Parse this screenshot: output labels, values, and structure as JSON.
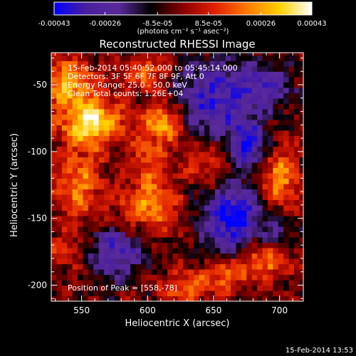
{
  "chart_data": {
    "type": "heatmap",
    "title": "Reconstructed RHESSI Image",
    "xlabel": "Heliocentric X (arcsec)",
    "ylabel": "Heliocentric Y (arcsec)",
    "xlim": [
      527,
      718
    ],
    "ylim": [
      -212,
      -26
    ],
    "x_ticks": [
      550,
      600,
      650,
      700
    ],
    "y_ticks": [
      -50,
      -100,
      -150,
      -200
    ],
    "colorbar": {
      "min": -0.00043,
      "max": 0.00043,
      "tick_values": [
        -0.00043,
        -0.00026,
        -8.5e-05,
        8.5e-05,
        0.00026,
        0.00043
      ],
      "tick_labels": [
        "-0.00043",
        "-0.00026",
        "-8.5e-05",
        "8.5e-05",
        "0.00026",
        "0.00043"
      ],
      "unit_label": "(photons cm⁻² s⁻¹ asec⁻²)",
      "colormap": [
        "#0000ff",
        "#4a1f9e",
        "#5a2a9c",
        "#000000",
        "#8b0000",
        "#e02000",
        "#ff7a00",
        "#ffd000",
        "#ffffff"
      ]
    },
    "annotations": [
      "15-Feb-2014 05:40:52.000 to 05:45:14.000",
      "Detectors: 3F 5F 6F 7F 8F 9F, Att 0",
      "Energy Range: 25.0 - 50.0 keV",
      "Clean     Total counts: 1.26E+04"
    ],
    "peak_label": "Position of Peak = [558,-78]",
    "peak": [
      558,
      -78
    ],
    "sources": [
      {
        "x": 558,
        "y": -78,
        "amp": 1.0,
        "sx": 16,
        "sy": 12
      },
      {
        "x": 540,
        "y": -48,
        "amp": 0.75,
        "sx": 14,
        "sy": 12
      },
      {
        "x": 612,
        "y": -78,
        "amp": 0.78,
        "sx": 11,
        "sy": 12
      },
      {
        "x": 548,
        "y": -125,
        "amp": 0.55,
        "sx": 12,
        "sy": 20
      },
      {
        "x": 600,
        "y": -140,
        "amp": 0.6,
        "sx": 16,
        "sy": 14
      },
      {
        "x": 598,
        "y": -40,
        "amp": 0.5,
        "sx": 12,
        "sy": 10
      },
      {
        "x": 700,
        "y": -120,
        "amp": 0.65,
        "sx": 10,
        "sy": 18
      },
      {
        "x": 688,
        "y": -180,
        "amp": 0.6,
        "sx": 14,
        "sy": 10
      },
      {
        "x": 660,
        "y": -192,
        "amp": 0.55,
        "sx": 10,
        "sy": 8
      },
      {
        "x": 630,
        "y": -200,
        "amp": 0.5,
        "sx": 14,
        "sy": 8
      },
      {
        "x": 640,
        "y": -110,
        "amp": 0.35,
        "sx": 10,
        "sy": 10
      },
      {
        "x": 655,
        "y": -100,
        "amp": 0.35,
        "sx": 8,
        "sy": 12
      },
      {
        "x": 600,
        "y": -108,
        "amp": 0.4,
        "sx": 10,
        "sy": 10
      },
      {
        "x": 540,
        "y": -175,
        "amp": 0.3,
        "sx": 12,
        "sy": 10
      },
      {
        "x": 575,
        "y": -175,
        "amp": -0.65,
        "sx": 16,
        "sy": 14
      },
      {
        "x": 665,
        "y": -150,
        "amp": -0.95,
        "sx": 16,
        "sy": 18
      },
      {
        "x": 650,
        "y": -60,
        "amp": -0.7,
        "sx": 22,
        "sy": 22
      },
      {
        "x": 675,
        "y": -95,
        "amp": -0.8,
        "sx": 12,
        "sy": 12
      },
      {
        "x": 690,
        "y": -50,
        "amp": -0.5,
        "sx": 14,
        "sy": 12
      },
      {
        "x": 700,
        "y": -160,
        "amp": -0.45,
        "sx": 8,
        "sy": 10
      }
    ]
  },
  "footer": {
    "timestamp": "15-Feb-2014 13:53"
  }
}
